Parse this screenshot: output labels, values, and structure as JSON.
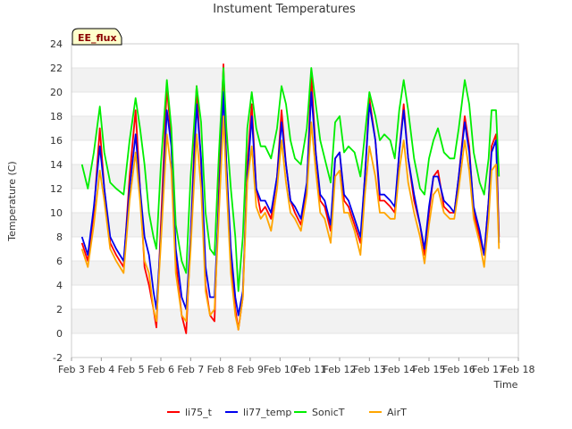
{
  "chart_data": {
    "type": "line",
    "title": "Instument Temperatures",
    "xlabel": "Time",
    "ylabel": "Temperature (C)",
    "badge": "EE_flux",
    "xlim": [
      3,
      18
    ],
    "ylim": [
      -2,
      24
    ],
    "x_ticks": [
      3,
      4,
      5,
      6,
      7,
      8,
      9,
      10,
      11,
      12,
      13,
      14,
      15,
      16,
      17,
      18
    ],
    "x_tick_labels": [
      "Feb 3",
      "Feb 4",
      "Feb 5",
      "Feb 6",
      "Feb 7",
      "Feb 8",
      "Feb 9",
      "Feb 10",
      "Feb 11",
      "Feb 12",
      "Feb 13",
      "Feb 14",
      "Feb 15",
      "Feb 16",
      "Feb 17",
      "Feb 18"
    ],
    "y_ticks": [
      -2,
      0,
      2,
      4,
      6,
      8,
      10,
      12,
      14,
      16,
      18,
      20,
      22,
      24
    ],
    "grid": "horizontal bands",
    "legend_position": "bottom-center",
    "series": [
      {
        "name": "li75_t",
        "color": "#ff0000",
        "x": [
          3.35,
          3.55,
          3.75,
          3.95,
          4.1,
          4.3,
          4.5,
          4.75,
          4.95,
          5.15,
          5.3,
          5.45,
          5.6,
          5.75,
          5.85,
          6.0,
          6.2,
          6.35,
          6.5,
          6.7,
          6.85,
          7.0,
          7.2,
          7.35,
          7.5,
          7.65,
          7.8,
          7.95,
          8.1,
          8.2,
          8.35,
          8.5,
          8.6,
          8.75,
          8.9,
          9.05,
          9.2,
          9.35,
          9.5,
          9.7,
          9.9,
          10.05,
          10.2,
          10.35,
          10.5,
          10.7,
          10.9,
          11.05,
          11.2,
          11.35,
          11.5,
          11.7,
          11.85,
          12.0,
          12.15,
          12.3,
          12.5,
          12.7,
          12.85,
          13.0,
          13.2,
          13.35,
          13.5,
          13.7,
          13.85,
          14.0,
          14.15,
          14.3,
          14.5,
          14.7,
          14.85,
          15.0,
          15.15,
          15.3,
          15.5,
          15.7,
          15.85,
          16.0,
          16.2,
          16.35,
          16.5,
          16.7,
          16.85,
          17.0,
          17.1,
          17.25,
          17.35
        ],
        "values": [
          7.5,
          6.0,
          10.0,
          17.0,
          12.0,
          7.5,
          6.5,
          5.5,
          13.0,
          18.5,
          12.0,
          5.5,
          4.0,
          2.0,
          0.5,
          9.0,
          20.5,
          16.0,
          6.0,
          1.5,
          0.0,
          8.0,
          20.5,
          14.0,
          4.0,
          1.5,
          1.0,
          12.0,
          22.3,
          14.0,
          6.0,
          2.0,
          0.3,
          3.0,
          14.0,
          19.0,
          12.0,
          10.0,
          10.5,
          9.5,
          13.0,
          18.5,
          14.0,
          11.0,
          10.0,
          9.0,
          12.0,
          21.5,
          15.0,
          11.0,
          10.5,
          8.5,
          14.5,
          15.0,
          11.0,
          10.5,
          9.0,
          7.5,
          13.0,
          19.5,
          16.0,
          11.0,
          11.0,
          10.5,
          10.0,
          15.0,
          19.0,
          14.5,
          11.0,
          9.0,
          6.5,
          10.0,
          13.0,
          13.5,
          10.5,
          10.0,
          10.0,
          13.0,
          18.0,
          15.5,
          10.0,
          8.0,
          6.5,
          11.0,
          15.5,
          16.5,
          8.0
        ]
      },
      {
        "name": "li77_temp",
        "color": "#0000ee",
        "x": [
          3.35,
          3.55,
          3.75,
          3.95,
          4.1,
          4.3,
          4.5,
          4.75,
          4.95,
          5.15,
          5.3,
          5.45,
          5.6,
          5.75,
          5.85,
          6.0,
          6.2,
          6.35,
          6.5,
          6.7,
          6.85,
          7.0,
          7.2,
          7.35,
          7.5,
          7.65,
          7.8,
          7.95,
          8.1,
          8.2,
          8.35,
          8.5,
          8.6,
          8.75,
          8.9,
          9.05,
          9.2,
          9.35,
          9.5,
          9.7,
          9.9,
          10.05,
          10.2,
          10.35,
          10.5,
          10.7,
          10.9,
          11.05,
          11.2,
          11.35,
          11.5,
          11.7,
          11.85,
          12.0,
          12.15,
          12.3,
          12.5,
          12.7,
          12.85,
          13.0,
          13.2,
          13.35,
          13.5,
          13.7,
          13.85,
          14.0,
          14.15,
          14.3,
          14.5,
          14.7,
          14.85,
          15.0,
          15.15,
          15.3,
          15.5,
          15.7,
          15.85,
          16.0,
          16.2,
          16.35,
          16.5,
          16.7,
          16.85,
          17.0,
          17.1,
          17.25,
          17.35
        ],
        "values": [
          8.0,
          6.5,
          10.5,
          15.5,
          12.0,
          8.0,
          7.0,
          6.0,
          12.0,
          16.5,
          12.0,
          8.0,
          6.5,
          3.5,
          2.0,
          8.0,
          18.5,
          15.5,
          7.0,
          3.0,
          2.0,
          8.0,
          19.0,
          14.5,
          5.5,
          3.0,
          3.0,
          11.0,
          20.0,
          14.0,
          7.0,
          3.0,
          1.5,
          3.5,
          13.0,
          18.0,
          12.0,
          11.0,
          11.0,
          10.0,
          13.0,
          17.5,
          14.0,
          11.0,
          10.5,
          9.5,
          12.5,
          20.0,
          15.0,
          11.5,
          11.0,
          9.0,
          14.5,
          15.0,
          11.5,
          11.0,
          9.5,
          8.0,
          13.0,
          19.0,
          16.0,
          11.5,
          11.5,
          11.0,
          10.5,
          15.0,
          18.5,
          14.5,
          11.5,
          9.0,
          7.0,
          10.5,
          13.0,
          13.0,
          11.0,
          10.5,
          10.0,
          13.0,
          17.5,
          15.0,
          10.5,
          8.5,
          6.5,
          11.0,
          15.0,
          16.0,
          7.5
        ]
      },
      {
        "name": "SonicT",
        "color": "#00ee00",
        "x": [
          3.35,
          3.55,
          3.75,
          3.95,
          4.1,
          4.3,
          4.5,
          4.75,
          4.95,
          5.15,
          5.3,
          5.45,
          5.6,
          5.75,
          5.85,
          6.0,
          6.2,
          6.35,
          6.5,
          6.7,
          6.85,
          7.0,
          7.2,
          7.35,
          7.5,
          7.65,
          7.8,
          7.95,
          8.1,
          8.2,
          8.35,
          8.5,
          8.6,
          8.75,
          8.9,
          9.05,
          9.2,
          9.35,
          9.5,
          9.7,
          9.9,
          10.05,
          10.2,
          10.35,
          10.5,
          10.7,
          10.9,
          11.05,
          11.2,
          11.35,
          11.5,
          11.7,
          11.85,
          12.0,
          12.15,
          12.3,
          12.5,
          12.7,
          12.85,
          13.0,
          13.2,
          13.35,
          13.5,
          13.7,
          13.85,
          14.0,
          14.15,
          14.3,
          14.5,
          14.7,
          14.85,
          15.0,
          15.15,
          15.3,
          15.5,
          15.7,
          15.85,
          16.0,
          16.2,
          16.35,
          16.5,
          16.7,
          16.85,
          17.0,
          17.1,
          17.25,
          17.35
        ],
        "values": [
          14.0,
          12.0,
          15.0,
          18.8,
          15.0,
          12.5,
          12.0,
          11.5,
          16.0,
          19.5,
          17.0,
          14.0,
          10.0,
          8.0,
          7.0,
          14.0,
          21.0,
          17.0,
          9.0,
          6.0,
          5.0,
          13.0,
          20.5,
          17.5,
          10.0,
          7.0,
          6.5,
          15.0,
          22.0,
          17.0,
          12.0,
          8.0,
          3.5,
          8.0,
          17.0,
          20.0,
          17.0,
          15.5,
          15.5,
          14.5,
          17.0,
          20.5,
          19.0,
          16.0,
          14.5,
          14.0,
          17.0,
          22.0,
          19.0,
          16.0,
          14.5,
          12.5,
          17.5,
          18.0,
          15.0,
          15.5,
          15.0,
          13.0,
          16.5,
          20.0,
          18.0,
          16.0,
          16.5,
          16.0,
          14.5,
          18.5,
          21.0,
          18.5,
          14.5,
          12.0,
          11.5,
          14.5,
          16.0,
          17.0,
          15.0,
          14.5,
          14.5,
          17.0,
          21.0,
          19.0,
          15.0,
          12.5,
          11.5,
          14.5,
          18.5,
          18.5,
          13.0
        ]
      },
      {
        "name": "AirT",
        "color": "#ffa500",
        "x": [
          3.35,
          3.55,
          3.75,
          3.95,
          4.1,
          4.3,
          4.5,
          4.75,
          4.95,
          5.15,
          5.3,
          5.45,
          5.6,
          5.75,
          5.85,
          6.0,
          6.2,
          6.35,
          6.5,
          6.7,
          6.85,
          7.0,
          7.2,
          7.35,
          7.5,
          7.65,
          7.8,
          7.95,
          8.1,
          8.2,
          8.35,
          8.5,
          8.6,
          8.75,
          8.9,
          9.05,
          9.2,
          9.35,
          9.5,
          9.7,
          9.9,
          10.05,
          10.2,
          10.35,
          10.5,
          10.7,
          10.9,
          11.05,
          11.2,
          11.35,
          11.5,
          11.7,
          11.85,
          12.0,
          12.15,
          12.3,
          12.5,
          12.7,
          12.85,
          13.0,
          13.2,
          13.35,
          13.5,
          13.7,
          13.85,
          14.0,
          14.15,
          14.3,
          14.5,
          14.7,
          14.85,
          15.0,
          15.15,
          15.3,
          15.5,
          15.7,
          15.85,
          16.0,
          16.2,
          16.35,
          16.5,
          16.7,
          16.85,
          17.0,
          17.1,
          17.25,
          17.35
        ],
        "values": [
          7.0,
          5.5,
          9.0,
          13.5,
          11.0,
          7.0,
          6.0,
          5.0,
          11.0,
          15.0,
          11.0,
          6.0,
          5.0,
          2.0,
          1.0,
          7.5,
          16.5,
          13.5,
          5.0,
          1.5,
          1.0,
          7.0,
          16.5,
          12.0,
          3.5,
          1.5,
          2.0,
          10.0,
          18.0,
          12.5,
          5.0,
          1.5,
          0.3,
          3.0,
          12.5,
          15.5,
          10.5,
          9.5,
          10.0,
          8.5,
          12.0,
          16.0,
          12.5,
          10.0,
          9.5,
          8.5,
          11.5,
          17.5,
          13.5,
          10.0,
          9.5,
          7.5,
          13.0,
          13.5,
          10.0,
          10.0,
          8.5,
          6.5,
          11.5,
          15.5,
          13.0,
          10.0,
          10.0,
          9.5,
          9.5,
          13.5,
          16.0,
          12.5,
          10.0,
          8.0,
          5.8,
          9.0,
          11.5,
          12.0,
          10.0,
          9.5,
          9.5,
          12.0,
          16.0,
          13.5,
          9.5,
          7.5,
          5.5,
          9.5,
          13.5,
          14.0,
          7.0
        ]
      }
    ]
  }
}
